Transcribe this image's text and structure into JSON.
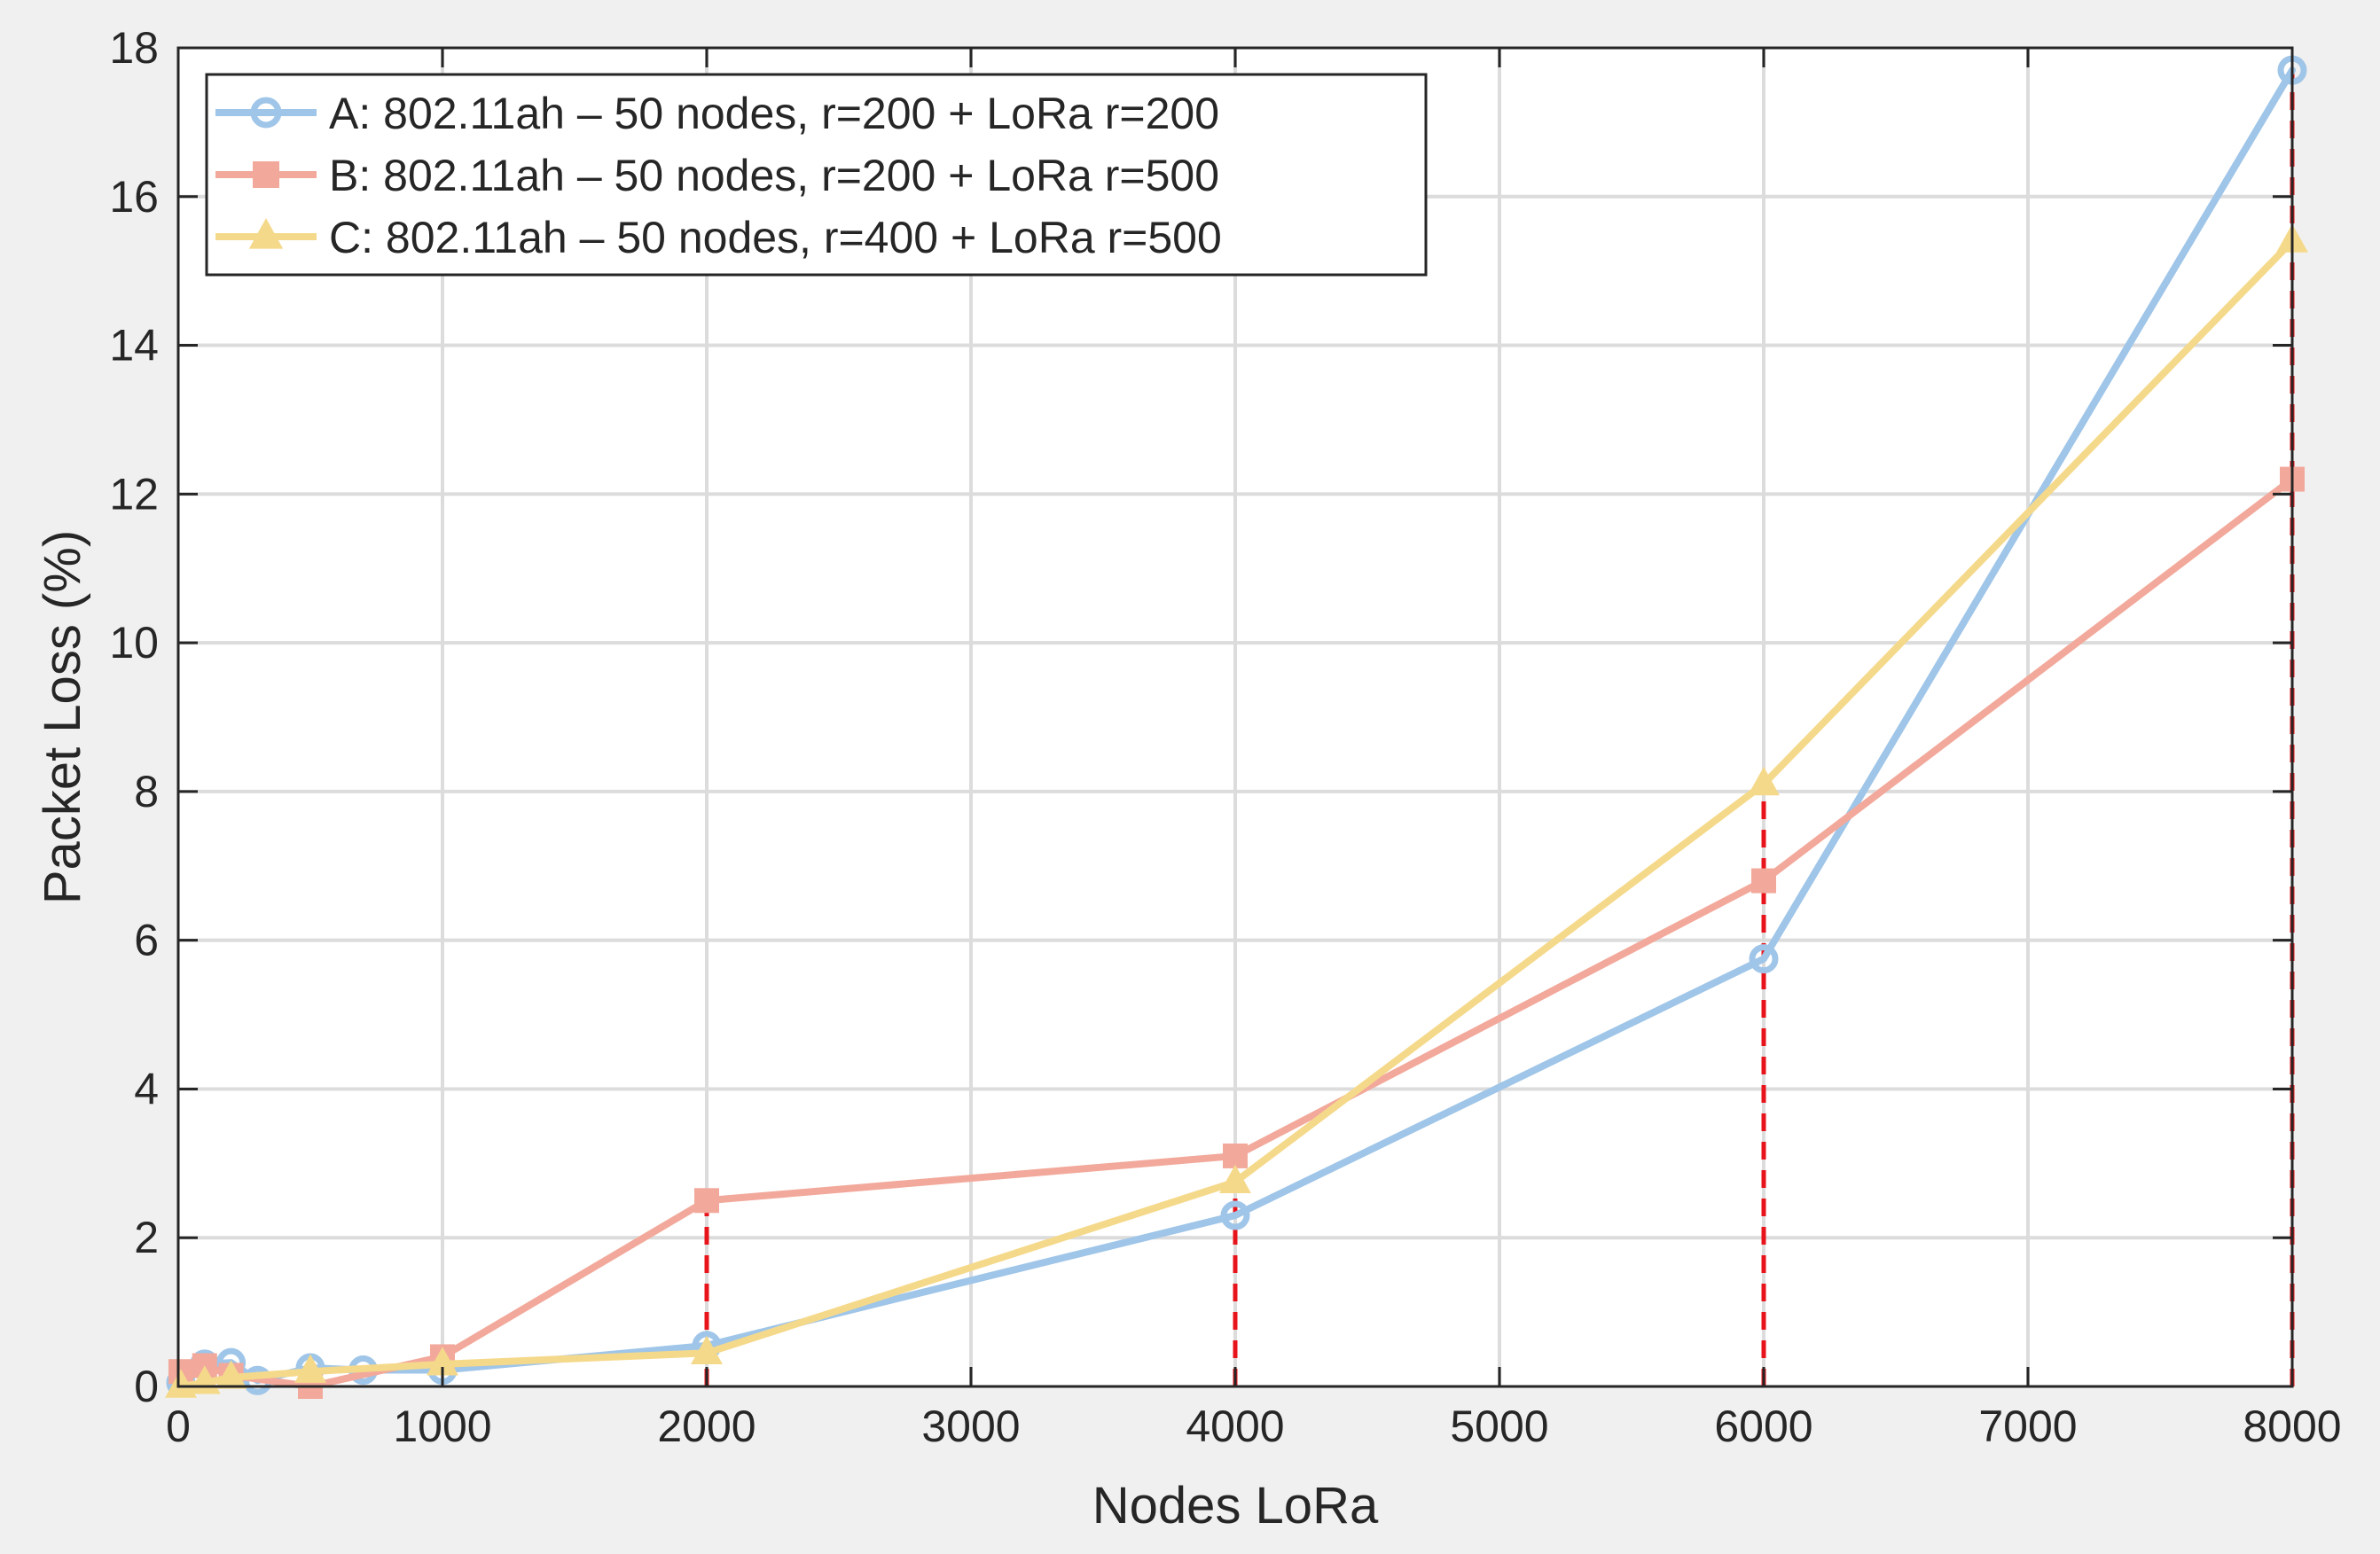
{
  "chart_data": {
    "type": "line",
    "title": "",
    "xlabel": "Nodes LoRa",
    "ylabel": "Packet Loss (%)",
    "xlim": [
      0,
      8000
    ],
    "ylim": [
      0,
      18
    ],
    "xticks": [
      0,
      1000,
      2000,
      3000,
      4000,
      5000,
      6000,
      7000,
      8000
    ],
    "yticks": [
      0,
      2,
      4,
      6,
      8,
      10,
      12,
      14,
      16,
      18
    ],
    "grid": true,
    "legend_position": "top-left",
    "series": [
      {
        "name": "A: 802.11ah – 50 nodes, r=200 + LoRa r=200",
        "color": "#9fc5e8",
        "marker": "circle",
        "x": [
          10,
          100,
          200,
          300,
          500,
          700,
          1000,
          2000,
          4000,
          6000,
          8000
        ],
        "y": [
          0.05,
          0.3,
          0.32,
          0.08,
          0.25,
          0.22,
          0.22,
          0.55,
          2.3,
          5.75,
          17.7
        ]
      },
      {
        "name": "B: 802.11ah – 50 nodes, r=200 + LoRa r=500",
        "color": "#f2a99b",
        "marker": "square",
        "x": [
          10,
          100,
          200,
          500,
          1000,
          2000,
          4000,
          6000,
          8000
        ],
        "y": [
          0.2,
          0.28,
          0.15,
          0.0,
          0.4,
          2.5,
          3.1,
          6.8,
          12.2
        ]
      },
      {
        "name": "C: 802.11ah – 50 nodes, r=400 + LoRa r=500",
        "color": "#f5d98b",
        "marker": "triangle",
        "x": [
          10,
          100,
          200,
          500,
          1000,
          2000,
          4000,
          6000,
          8000
        ],
        "y": [
          0.0,
          0.05,
          0.12,
          0.2,
          0.3,
          0.45,
          2.75,
          8.1,
          15.4
        ]
      }
    ],
    "reference_lines": {
      "color": "#e8141b",
      "style": "dashed",
      "x": [
        2000,
        4000,
        6000,
        8000
      ],
      "y_top": [
        2.5,
        3.1,
        8.1,
        17.7
      ]
    }
  }
}
